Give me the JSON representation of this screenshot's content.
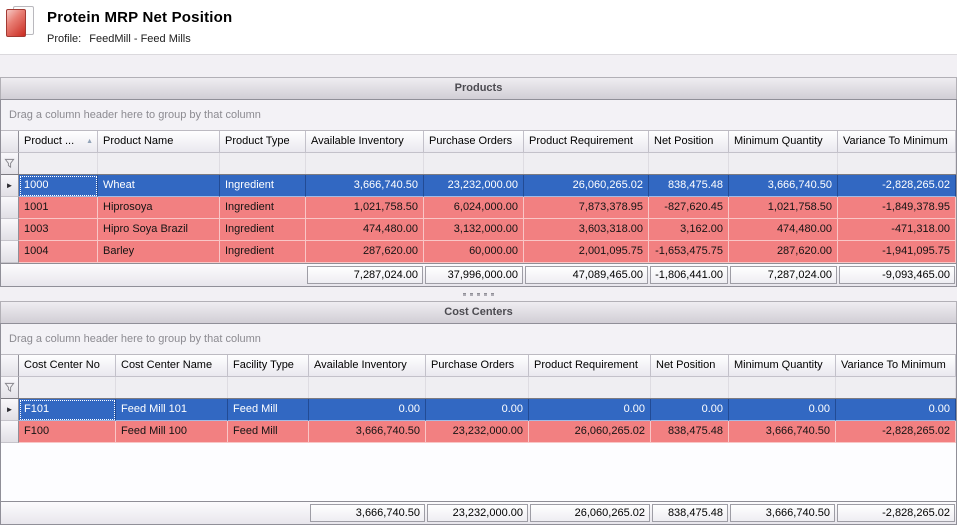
{
  "header": {
    "title": "Protein MRP Net Position",
    "profile_label": "Profile:",
    "profile_value": "FeedMill - Feed Mills"
  },
  "colors": {
    "selected_row": "#3268c2",
    "alert_row": "#f28081",
    "caption_text": "#4c4b51",
    "caption_from": "#efedf1",
    "caption_to": "#d1ced5"
  },
  "grids": [
    {
      "id": "products",
      "caption": "Products",
      "group_panel_text": "Drag a column header here to group by that column",
      "indicator_width": 18,
      "empty_height": 0,
      "columns": [
        {
          "label": "Product ...",
          "width": 79,
          "align": "left",
          "sort": "asc"
        },
        {
          "label": "Product Name",
          "width": 122,
          "align": "left"
        },
        {
          "label": "Product Type",
          "width": 86,
          "align": "left"
        },
        {
          "label": "Available Inventory",
          "width": 118,
          "align": "right"
        },
        {
          "label": "Purchase Orders",
          "width": 100,
          "align": "right"
        },
        {
          "label": "Product Requirement",
          "width": 125,
          "align": "right"
        },
        {
          "label": "Net Position",
          "width": 80,
          "align": "right"
        },
        {
          "label": "Minimum Quantity",
          "width": 109,
          "align": "right"
        },
        {
          "label": "Variance To Minimum",
          "width": 120,
          "align": "right"
        }
      ],
      "rows": [
        {
          "state": "selected",
          "cells": [
            "1000",
            "Wheat",
            "Ingredient",
            "3,666,740.50",
            "23,232,000.00",
            "26,060,265.02",
            "838,475.48",
            "3,666,740.50",
            "-2,828,265.02"
          ]
        },
        {
          "state": "alert",
          "cells": [
            "1001",
            "Hiprosoya",
            "Ingredient",
            "1,021,758.50",
            "6,024,000.00",
            "7,873,378.95",
            "-827,620.45",
            "1,021,758.50",
            "-1,849,378.95"
          ]
        },
        {
          "state": "alert",
          "cells": [
            "1003",
            "Hipro Soya Brazil",
            "Ingredient",
            "474,480.00",
            "3,132,000.00",
            "3,603,318.00",
            "3,162.00",
            "474,480.00",
            "-471,318.00"
          ]
        },
        {
          "state": "alert",
          "cells": [
            "1004",
            "Barley",
            "Ingredient",
            "287,620.00",
            "60,000.00",
            "2,001,095.75",
            "-1,653,475.75",
            "287,620.00",
            "-1,941,095.75"
          ]
        }
      ],
      "footer": [
        "",
        "",
        "",
        "7,287,024.00",
        "37,996,000.00",
        "47,089,465.00",
        "-1,806,441.00",
        "7,287,024.00",
        "-9,093,465.00"
      ]
    },
    {
      "id": "cost-centers",
      "caption": "Cost Centers",
      "group_panel_text": "Drag a column header here to group by that column",
      "indicator_width": 18,
      "empty_height": 58,
      "columns": [
        {
          "label": "Cost Center No",
          "width": 97,
          "align": "left"
        },
        {
          "label": "Cost Center Name",
          "width": 112,
          "align": "left"
        },
        {
          "label": "Facility Type",
          "width": 81,
          "align": "left"
        },
        {
          "label": "Available Inventory",
          "width": 117,
          "align": "right"
        },
        {
          "label": "Purchase Orders",
          "width": 103,
          "align": "right"
        },
        {
          "label": "Product Requirement",
          "width": 122,
          "align": "right"
        },
        {
          "label": "Net Position",
          "width": 78,
          "align": "right"
        },
        {
          "label": "Minimum Quantity",
          "width": 107,
          "align": "right"
        },
        {
          "label": "Variance To Minimum",
          "width": 122,
          "align": "right"
        }
      ],
      "rows": [
        {
          "state": "selected",
          "cells": [
            "F101",
            "Feed Mill 101",
            "Feed Mill",
            "0.00",
            "0.00",
            "0.00",
            "0.00",
            "0.00",
            "0.00"
          ]
        },
        {
          "state": "alert",
          "cells": [
            "F100",
            "Feed Mill 100",
            "Feed Mill",
            "3,666,740.50",
            "23,232,000.00",
            "26,060,265.02",
            "838,475.48",
            "3,666,740.50",
            "-2,828,265.02"
          ]
        }
      ],
      "footer": [
        "",
        "",
        "",
        "3,666,740.50",
        "23,232,000.00",
        "26,060,265.02",
        "838,475.48",
        "3,666,740.50",
        "-2,828,265.02"
      ]
    }
  ]
}
